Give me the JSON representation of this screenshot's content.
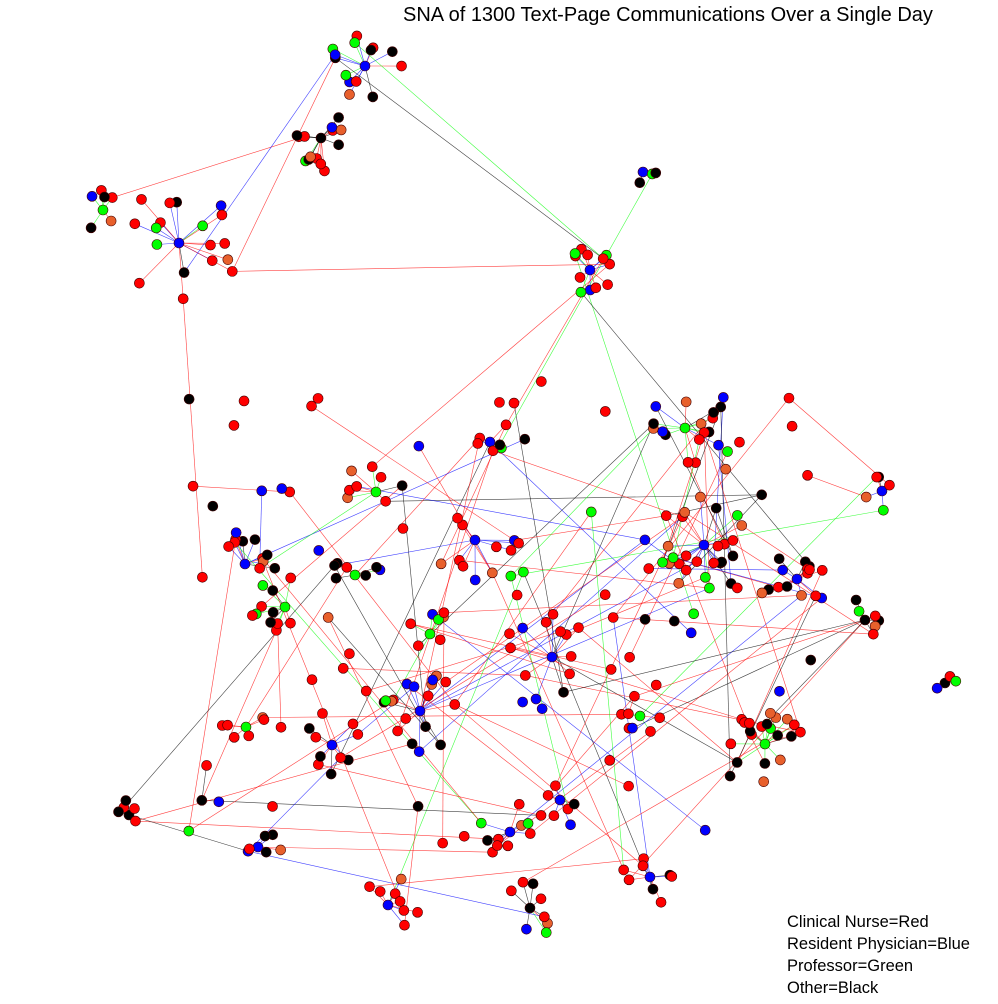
{
  "title": "SNA of 1300 Text-Page Communications Over a Single Day",
  "legend": {
    "items": [
      {
        "label": "Clinical Nurse=Red",
        "role": "nurse",
        "color": "#ff0000"
      },
      {
        "label": "Resident Physician=Blue",
        "role": "resident",
        "color": "#0000ff"
      },
      {
        "label": "Professor=Green",
        "role": "professor",
        "color": "#00ff00"
      },
      {
        "label": "Other=Black",
        "role": "other",
        "color": "#000000"
      }
    ]
  },
  "colors": {
    "nurse": "#ff0000",
    "resident": "#0000ff",
    "professor": "#00ff00",
    "other": "#000000",
    "unlabeled_orange": "#e8602c"
  }
}
